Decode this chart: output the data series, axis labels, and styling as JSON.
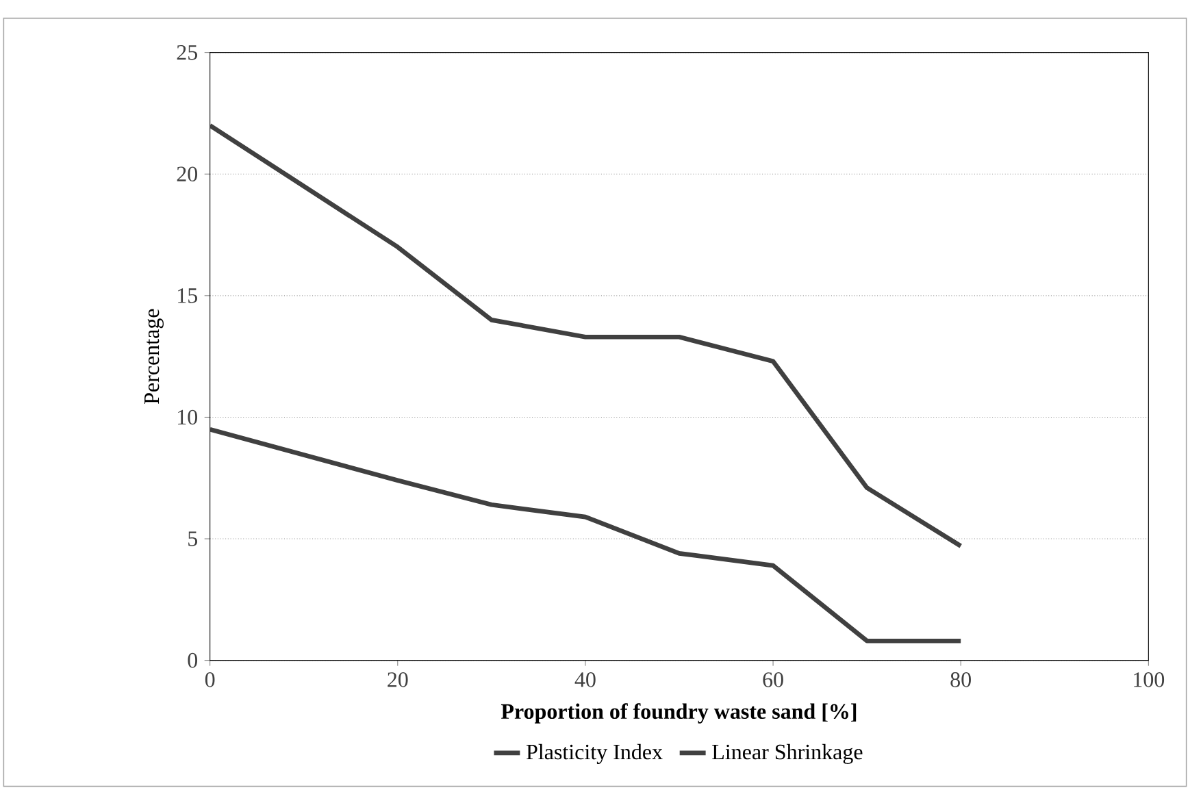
{
  "chart_data": {
    "type": "line",
    "xlabel": "Proportion of foundry waste sand [%]",
    "ylabel": "Percentage",
    "x": [
      0,
      20,
      30,
      40,
      50,
      60,
      70,
      80
    ],
    "series": [
      {
        "name": "Plasticity Index",
        "color": "#404040",
        "values": [
          22,
          17,
          14,
          13.3,
          13.3,
          12.3,
          7.1,
          4.7
        ]
      },
      {
        "name": "Linear Shrinkage",
        "color": "#404040",
        "values": [
          9.5,
          7.4,
          6.4,
          5.9,
          4.4,
          3.9,
          0.8,
          0.8
        ]
      }
    ],
    "xlim": [
      0,
      100
    ],
    "xticks": [
      0,
      20,
      40,
      60,
      80,
      100
    ],
    "ylim": [
      0,
      25
    ],
    "yticks": [
      0,
      5,
      10,
      15,
      20,
      25
    ],
    "grid": "y",
    "legend": "bottom",
    "marker": "none",
    "line_style": "solid"
  }
}
